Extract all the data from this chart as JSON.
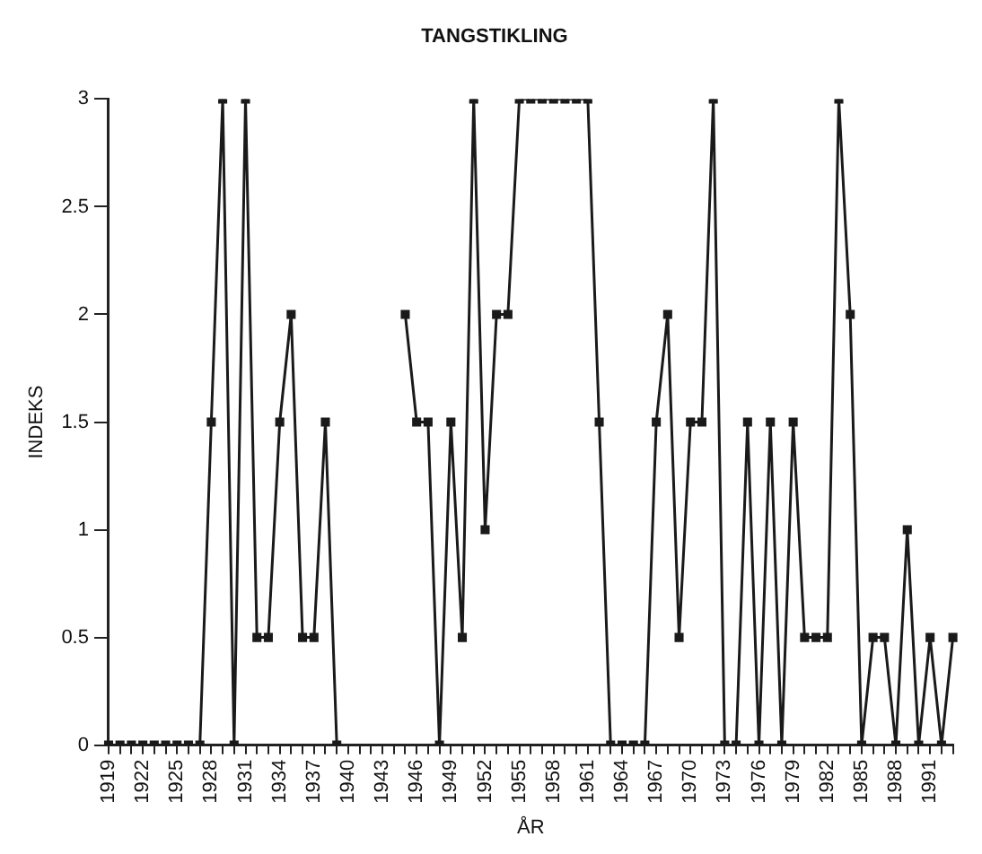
{
  "chart_data": {
    "type": "line",
    "title": "TANGSTIKLING",
    "xlabel": "ÅR",
    "ylabel": "INDEKS",
    "categories": [
      "1919",
      null,
      null,
      "1922",
      null,
      null,
      "1925",
      null,
      null,
      "1928",
      null,
      null,
      "1931",
      null,
      null,
      "1934",
      null,
      null,
      "1937",
      null,
      null,
      "1940",
      null,
      null,
      "1943",
      null,
      null,
      "1946",
      null,
      null,
      "1949",
      null,
      null,
      "1952",
      null,
      null,
      "1955",
      null,
      null,
      "1958",
      null,
      null,
      "1961",
      null,
      null,
      "1964",
      null,
      null,
      "1967",
      null,
      null,
      "1970",
      null,
      null,
      "1973",
      null,
      null,
      "1976",
      null,
      null,
      "1979",
      null,
      null,
      "1982",
      null,
      null,
      "1985",
      null,
      null,
      "1988",
      null,
      null,
      "1991",
      null,
      null
    ],
    "series": [
      {
        "color": "#1a1a1a",
        "values": [
          0,
          0,
          0,
          0,
          0,
          0,
          0,
          0,
          0,
          1.5,
          3,
          0,
          3,
          0.5,
          0.5,
          1.5,
          2,
          0.5,
          0.5,
          1.5,
          0,
          null,
          null,
          null,
          null,
          null,
          2,
          1.5,
          1.5,
          0,
          1.5,
          0.5,
          3,
          1,
          2,
          2,
          3,
          3,
          3,
          3,
          3,
          3,
          3,
          1.5,
          0,
          0,
          0,
          0,
          1.5,
          2,
          0.5,
          1.5,
          1.5,
          3,
          0,
          0,
          1.5,
          0,
          1.5,
          0,
          1.5,
          0.5,
          0.5,
          0.5,
          3,
          2,
          0,
          0.5,
          0.5,
          0,
          1,
          0,
          0.5,
          0,
          0.5
        ]
      }
    ],
    "ylim": [
      0,
      3
    ],
    "yticks": [
      0,
      0.5,
      1,
      1.5,
      2,
      2.5,
      3
    ],
    "grid": false,
    "legend": false,
    "marker": "square",
    "line_style": "solid"
  }
}
